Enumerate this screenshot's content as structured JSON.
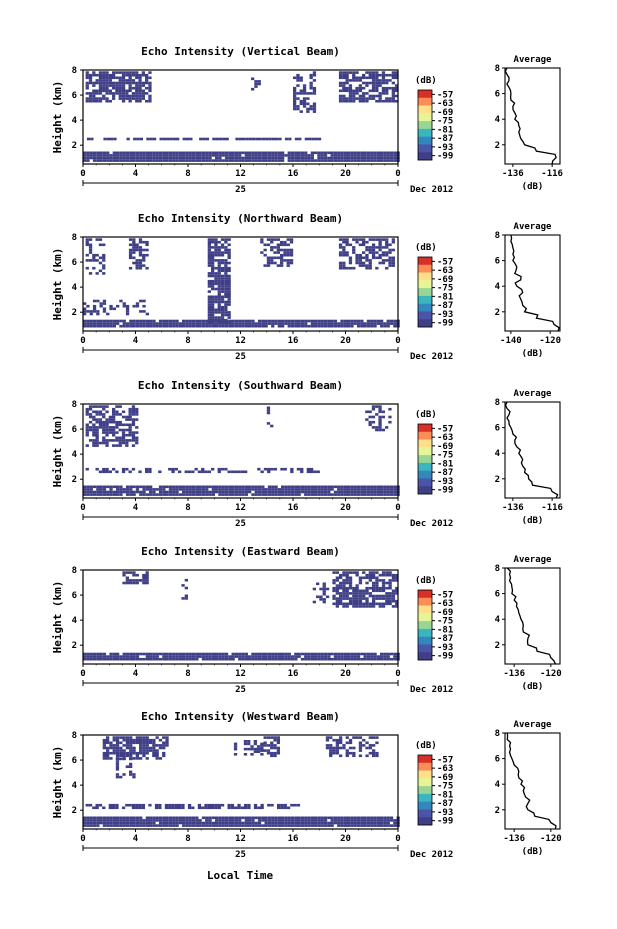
{
  "figure": {
    "xlabel_bottom": "Local Time",
    "date_label": "Dec 2012",
    "day_label": "25",
    "x_ticks": [
      "0",
      "4",
      "8",
      "12",
      "16",
      "20",
      "0"
    ],
    "y_ticks": [
      "2",
      "4",
      "6",
      "8"
    ],
    "ylabel": "Height (km)",
    "colorbar_unit": "(dB)",
    "colorbar_ticks": [
      "-57",
      "-63",
      "-69",
      "-75",
      "-81",
      "-87",
      "-93",
      "-99"
    ],
    "colorbar_colors": [
      "#d73027",
      "#fc8d59",
      "#fee08b",
      "#e6f598",
      "#99d594",
      "#3bb5c0",
      "#3288bd",
      "#4c54a8",
      "#3f3f87"
    ],
    "echo_color": "#3f3f87",
    "average_title": "Average",
    "average_xlabel": "(dB)"
  },
  "chart_data": [
    {
      "type": "heatmap",
      "title": "Echo Intensity (Vertical Beam)",
      "x_range_hours": [
        0,
        24
      ],
      "ylim_km": [
        0.5,
        8
      ],
      "echo_regions_hours_km": [
        {
          "x0": 0.2,
          "x1": 5.0,
          "y0": 5.6,
          "y1": 7.9,
          "density": 0.75
        },
        {
          "x0": 12.8,
          "x1": 13.4,
          "y0": 6.4,
          "y1": 7.4,
          "density": 0.6
        },
        {
          "x0": 16.0,
          "x1": 17.6,
          "y0": 4.6,
          "y1": 7.9,
          "density": 0.5
        },
        {
          "x0": 19.5,
          "x1": 23.8,
          "y0": 5.6,
          "y1": 7.9,
          "density": 0.7
        },
        {
          "x0": 0.3,
          "x1": 18.0,
          "y0": 2.4,
          "y1": 2.6,
          "density": 0.8
        },
        {
          "x0": 0.0,
          "x1": 24.0,
          "y0": 0.8,
          "y1": 1.5,
          "density": 0.95
        }
      ],
      "average": {
        "xticks": [
          "-136",
          "-116"
        ],
        "xlim": [
          -140,
          -112
        ],
        "height_km": [
          0.5,
          1.0,
          1.5,
          2.0,
          2.5,
          3.0,
          3.5,
          4.0,
          4.5,
          5.0,
          5.5,
          6.0,
          6.5,
          7.0,
          7.5,
          8.0
        ],
        "db": [
          -116,
          -114,
          -124,
          -130,
          -132,
          -133,
          -133,
          -135,
          -135,
          -136,
          -137,
          -137,
          -138,
          -138,
          -139,
          -139
        ]
      }
    },
    {
      "type": "heatmap",
      "title": "Echo Intensity (Northward Beam)",
      "x_range_hours": [
        0,
        24
      ],
      "ylim_km": [
        0.5,
        8
      ],
      "echo_regions_hours_km": [
        {
          "x0": 0.2,
          "x1": 1.5,
          "y0": 5.0,
          "y1": 7.9,
          "density": 0.4
        },
        {
          "x0": 3.5,
          "x1": 4.8,
          "y0": 5.6,
          "y1": 7.9,
          "density": 0.6
        },
        {
          "x0": 9.5,
          "x1": 11.2,
          "y0": 1.2,
          "y1": 7.9,
          "density": 0.8
        },
        {
          "x0": 13.5,
          "x1": 16.0,
          "y0": 5.8,
          "y1": 7.9,
          "density": 0.5
        },
        {
          "x0": 19.5,
          "x1": 23.7,
          "y0": 5.6,
          "y1": 7.9,
          "density": 0.6
        },
        {
          "x0": 0.0,
          "x1": 5.0,
          "y0": 1.8,
          "y1": 3.0,
          "density": 0.4
        },
        {
          "x0": 0.0,
          "x1": 24.0,
          "y0": 0.8,
          "y1": 1.4,
          "density": 0.95
        }
      ],
      "average": {
        "xticks": [
          "-140",
          "-120"
        ],
        "xlim": [
          -143,
          -115
        ],
        "height_km": [
          0.5,
          1.0,
          1.5,
          2.0,
          2.5,
          3.0,
          3.5,
          4.0,
          4.5,
          5.0,
          5.5,
          6.0,
          6.5,
          7.0,
          7.5,
          8.0
        ],
        "db": [
          -116,
          -118,
          -127,
          -133,
          -134,
          -135,
          -134,
          -137,
          -135,
          -138,
          -137,
          -139,
          -139,
          -139,
          -140,
          -140
        ]
      }
    },
    {
      "type": "heatmap",
      "title": "Echo Intensity (Southward Beam)",
      "x_range_hours": [
        0,
        24
      ],
      "ylim_km": [
        0.5,
        8
      ],
      "echo_regions_hours_km": [
        {
          "x0": 0.2,
          "x1": 4.2,
          "y0": 4.6,
          "y1": 7.9,
          "density": 0.7
        },
        {
          "x0": 14.0,
          "x1": 14.4,
          "y0": 6.0,
          "y1": 7.8,
          "density": 0.4
        },
        {
          "x0": 21.5,
          "x1": 23.5,
          "y0": 6.0,
          "y1": 7.9,
          "density": 0.4
        },
        {
          "x0": 0.2,
          "x1": 18.0,
          "y0": 2.6,
          "y1": 2.9,
          "density": 0.5
        },
        {
          "x0": 0.0,
          "x1": 24.0,
          "y0": 0.8,
          "y1": 1.5,
          "density": 0.95
        }
      ],
      "average": {
        "xticks": [
          "-136",
          "-116"
        ],
        "xlim": [
          -140,
          -112
        ],
        "height_km": [
          0.5,
          1.0,
          1.5,
          2.0,
          2.5,
          3.0,
          3.5,
          4.0,
          4.5,
          5.0,
          5.5,
          6.0,
          6.5,
          7.0,
          7.5,
          8.0
        ],
        "db": [
          -114,
          -116,
          -126,
          -128,
          -130,
          -131,
          -131,
          -133,
          -134,
          -135,
          -136,
          -137,
          -138,
          -138,
          -139,
          -139
        ]
      }
    },
    {
      "type": "heatmap",
      "title": "Echo Intensity (Eastward Beam)",
      "x_range_hours": [
        0,
        24
      ],
      "ylim_km": [
        0.5,
        8
      ],
      "echo_regions_hours_km": [
        {
          "x0": 3.0,
          "x1": 5.0,
          "y0": 7.0,
          "y1": 7.9,
          "density": 0.6
        },
        {
          "x0": 7.5,
          "x1": 8.0,
          "y0": 5.5,
          "y1": 7.5,
          "density": 0.3
        },
        {
          "x0": 19.0,
          "x1": 24.0,
          "y0": 5.0,
          "y1": 7.9,
          "density": 0.7
        },
        {
          "x0": 17.5,
          "x1": 19.0,
          "y0": 5.5,
          "y1": 7.0,
          "density": 0.3
        },
        {
          "x0": 0.0,
          "x1": 24.0,
          "y0": 0.8,
          "y1": 1.4,
          "density": 0.95
        }
      ],
      "average": {
        "xticks": [
          "-136",
          "-120"
        ],
        "xlim": [
          -140,
          -116
        ],
        "height_km": [
          0.5,
          1.0,
          1.5,
          2.0,
          2.5,
          3.0,
          3.5,
          4.0,
          4.5,
          5.0,
          5.5,
          6.0,
          6.5,
          7.0,
          7.5,
          8.0
        ],
        "db": [
          -118,
          -120,
          -126,
          -130,
          -130,
          -132,
          -132,
          -133,
          -134,
          -135,
          -136,
          -137,
          -137,
          -138,
          -138,
          -139
        ]
      }
    },
    {
      "type": "heatmap",
      "title": "Echo Intensity (Westward Beam)",
      "x_range_hours": [
        0,
        24
      ],
      "ylim_km": [
        0.5,
        8
      ],
      "echo_regions_hours_km": [
        {
          "x0": 1.5,
          "x1": 6.5,
          "y0": 6.2,
          "y1": 7.9,
          "density": 0.7
        },
        {
          "x0": 2.5,
          "x1": 4.0,
          "y0": 4.6,
          "y1": 6.2,
          "density": 0.5
        },
        {
          "x0": 11.5,
          "x1": 14.0,
          "y0": 6.4,
          "y1": 7.6,
          "density": 0.4
        },
        {
          "x0": 13.5,
          "x1": 15.0,
          "y0": 6.4,
          "y1": 7.9,
          "density": 0.6
        },
        {
          "x0": 18.5,
          "x1": 22.5,
          "y0": 6.4,
          "y1": 7.9,
          "density": 0.5
        },
        {
          "x0": 0.2,
          "x1": 16.5,
          "y0": 2.2,
          "y1": 2.5,
          "density": 0.6
        },
        {
          "x0": 0.0,
          "x1": 24.0,
          "y0": 0.8,
          "y1": 1.5,
          "density": 0.95
        }
      ],
      "average": {
        "xticks": [
          "-136",
          "-120"
        ],
        "xlim": [
          -140,
          -116
        ],
        "height_km": [
          0.5,
          1.0,
          1.5,
          2.0,
          2.5,
          3.0,
          3.5,
          4.0,
          4.5,
          5.0,
          5.5,
          6.0,
          6.5,
          7.0,
          7.5,
          8.0
        ],
        "db": [
          -118,
          -120,
          -127,
          -130,
          -130,
          -131,
          -132,
          -133,
          -134,
          -134,
          -136,
          -137,
          -138,
          -138,
          -139,
          -139
        ]
      }
    }
  ]
}
